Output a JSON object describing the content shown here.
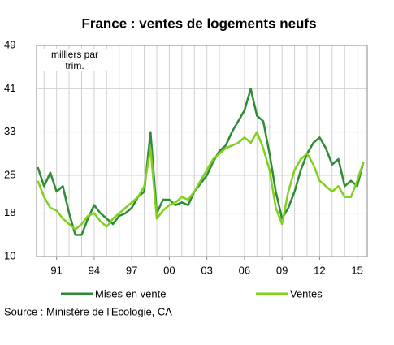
{
  "chart_data": {
    "type": "line",
    "title": "France : ventes de logements neufs",
    "annotation": "milliers par trim.",
    "source": "Source : Ministère de l'Ecologie, CA",
    "x": [
      1989.5,
      1990,
      1990.5,
      1991,
      1991.5,
      1992,
      1992.5,
      1993,
      1993.5,
      1994,
      1994.5,
      1995,
      1995.5,
      1996,
      1996.5,
      1997,
      1997.5,
      1998,
      1998.5,
      1999,
      1999.5,
      2000,
      2000.5,
      2001,
      2001.5,
      2002,
      2002.5,
      2003,
      2003.5,
      2004,
      2004.5,
      2005,
      2005.5,
      2006,
      2006.5,
      2007,
      2007.5,
      2008,
      2008.5,
      2009,
      2009.5,
      2010,
      2010.5,
      2011,
      2011.5,
      2012,
      2012.5,
      2013,
      2013.5,
      2014,
      2014.5,
      2015,
      2015.5
    ],
    "series": [
      {
        "name": "Mises en vente",
        "color": "#2e8b36",
        "values": [
          26.5,
          23,
          25.5,
          22,
          23,
          18,
          14,
          14,
          17,
          19.5,
          18,
          17,
          16,
          17.5,
          18,
          19,
          21,
          22,
          33,
          18,
          20.5,
          20.5,
          19.5,
          20,
          19.5,
          22,
          23.5,
          25,
          27.5,
          29.5,
          30.5,
          33,
          35,
          37,
          41,
          36,
          35,
          29,
          22,
          17,
          19,
          22,
          26,
          29,
          31,
          32,
          30,
          27,
          28,
          23,
          24,
          23,
          27.5
        ]
      },
      {
        "name": "Ventes",
        "color": "#7fd11b",
        "values": [
          24,
          21,
          19,
          18.5,
          17,
          16,
          15,
          16,
          17.5,
          18,
          16.5,
          15.5,
          17,
          18,
          19,
          20,
          21,
          23,
          30,
          17,
          18.5,
          19.5,
          20,
          21,
          20.5,
          22,
          24,
          26,
          28,
          29,
          30,
          30.5,
          31,
          32,
          31,
          33,
          30,
          26,
          19,
          16,
          22,
          26,
          28,
          29,
          27,
          24,
          23,
          22,
          23,
          21,
          21,
          24,
          27.5
        ]
      }
    ],
    "xlim": [
      1989.4,
      2015.8
    ],
    "xticks": [
      {
        "value": 1991,
        "label": "91"
      },
      {
        "value": 1994,
        "label": "94"
      },
      {
        "value": 1997,
        "label": "97"
      },
      {
        "value": 2000,
        "label": "00"
      },
      {
        "value": 2003,
        "label": "03"
      },
      {
        "value": 2006,
        "label": "06"
      },
      {
        "value": 2009,
        "label": "09"
      },
      {
        "value": 2012,
        "label": "12"
      },
      {
        "value": 2015,
        "label": "15"
      }
    ],
    "xminorticks": [
      1990,
      1991,
      1992,
      1993,
      1994,
      1995,
      1996,
      1997,
      1998,
      1999,
      2000,
      2001,
      2002,
      2003,
      2004,
      2005,
      2006,
      2007,
      2008,
      2009,
      2010,
      2011,
      2012,
      2013,
      2014,
      2015
    ],
    "ylim": [
      10,
      49
    ],
    "yticks": [
      10,
      18,
      25,
      33,
      41,
      49
    ],
    "grid": true
  }
}
